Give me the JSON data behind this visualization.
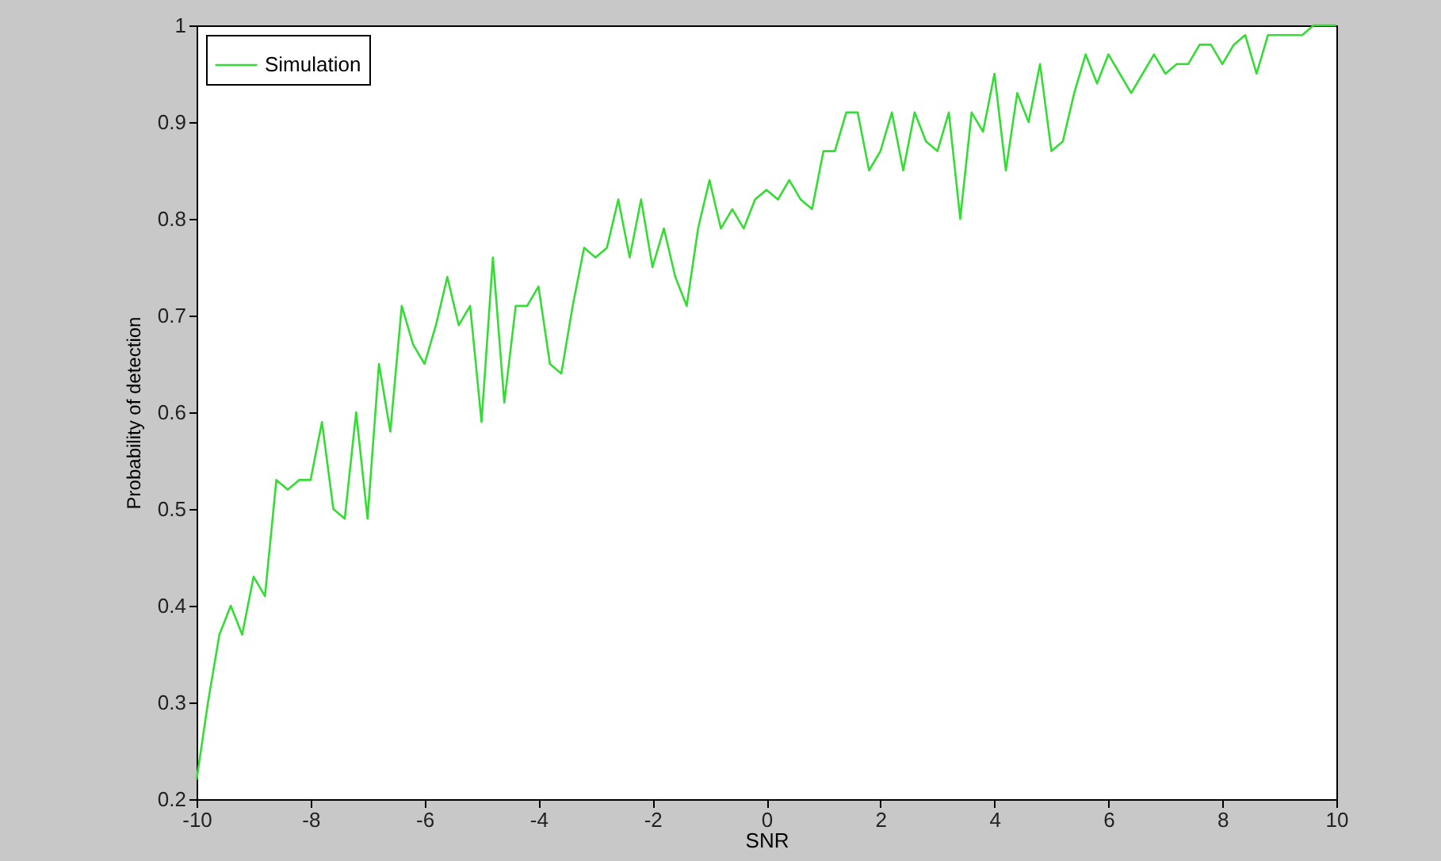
{
  "chart_data": {
    "type": "line",
    "xlabel": "SNR",
    "ylabel": "Probability of detection",
    "x": [
      -10,
      -9.8,
      -9.6,
      -9.4,
      -9.2,
      -9,
      -8.8,
      -8.6,
      -8.4,
      -8.2,
      -8,
      -7.8,
      -7.6,
      -7.4,
      -7.2,
      -7,
      -6.8,
      -6.6,
      -6.4,
      -6.2,
      -6,
      -5.8,
      -5.6,
      -5.4,
      -5.2,
      -5,
      -4.8,
      -4.6,
      -4.4,
      -4.2,
      -4,
      -3.8,
      -3.6,
      -3.4,
      -3.2,
      -3,
      -2.8,
      -2.6,
      -2.4,
      -2.2,
      -2,
      -1.8,
      -1.6,
      -1.4,
      -1.2,
      -1,
      -0.8,
      -0.6,
      -0.4,
      -0.2,
      0,
      0.2,
      0.4,
      0.6,
      0.8,
      1,
      1.2,
      1.4,
      1.6,
      1.8,
      2,
      2.2,
      2.4,
      2.6,
      2.8,
      3,
      3.2,
      3.4,
      3.6,
      3.8,
      4,
      4.2,
      4.4,
      4.6,
      4.8,
      5,
      5.2,
      5.4,
      5.6,
      5.8,
      6,
      6.2,
      6.4,
      6.6,
      6.8,
      7,
      7.2,
      7.4,
      7.6,
      7.8,
      8,
      8.2,
      8.4,
      8.6,
      8.8,
      9,
      9.2,
      9.4,
      9.6,
      9.8,
      10
    ],
    "series": [
      {
        "name": "Simulation",
        "color": "#33dd33",
        "values": [
          0.22,
          0.3,
          0.37,
          0.4,
          0.37,
          0.43,
          0.41,
          0.53,
          0.52,
          0.53,
          0.53,
          0.59,
          0.5,
          0.49,
          0.6,
          0.49,
          0.65,
          0.58,
          0.71,
          0.67,
          0.65,
          0.69,
          0.74,
          0.69,
          0.71,
          0.59,
          0.76,
          0.61,
          0.71,
          0.71,
          0.73,
          0.65,
          0.64,
          0.71,
          0.77,
          0.76,
          0.77,
          0.82,
          0.76,
          0.82,
          0.75,
          0.79,
          0.74,
          0.71,
          0.79,
          0.84,
          0.79,
          0.81,
          0.79,
          0.82,
          0.83,
          0.82,
          0.84,
          0.82,
          0.81,
          0.87,
          0.87,
          0.91,
          0.91,
          0.85,
          0.87,
          0.91,
          0.85,
          0.91,
          0.88,
          0.87,
          0.91,
          0.8,
          0.91,
          0.89,
          0.95,
          0.85,
          0.93,
          0.9,
          0.96,
          0.87,
          0.88,
          0.93,
          0.97,
          0.94,
          0.97,
          0.95,
          0.93,
          0.95,
          0.97,
          0.95,
          0.96,
          0.96,
          0.98,
          0.98,
          0.96,
          0.98,
          0.99,
          0.95,
          0.99,
          0.99,
          0.99,
          0.99,
          1,
          1,
          1
        ]
      }
    ],
    "xlim": [
      -10,
      10
    ],
    "xticks": [
      -10,
      -8,
      -6,
      -4,
      -2,
      0,
      2,
      4,
      6,
      8,
      10
    ],
    "ylim": [
      0.2,
      1
    ],
    "yticks": [
      0.2,
      0.3,
      0.4,
      0.5,
      0.6,
      0.7,
      0.8,
      0.9,
      1
    ],
    "legend": "top left",
    "grid": false,
    "marker": "none",
    "line_style": "solid"
  }
}
